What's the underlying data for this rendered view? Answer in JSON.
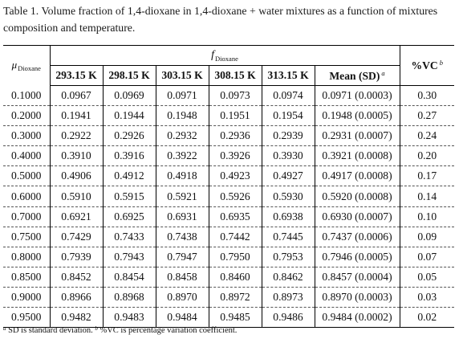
{
  "caption": "Table 1. Volume fraction of 1,4-dioxane in 1,4-dioxane + water mixtures as a function of mixtures composition and temperature.",
  "table": {
    "mu_symbol": "μ",
    "mu_subscript": "Dioxane",
    "f_symbol": "f",
    "f_subscript": "Dioxane",
    "temperatures": [
      "293.15 K",
      "298.15 K",
      "303.15 K",
      "308.15 K",
      "313.15 K"
    ],
    "mean_label": "Mean (SD)",
    "mean_footnote_mark": "a",
    "vc_label": "%VC",
    "vc_footnote_mark": "b",
    "rows": [
      {
        "mu": "0.1000",
        "t1": "0.0967",
        "t2": "0.0969",
        "t3": "0.0971",
        "t4": "0.0973",
        "t5": "0.0974",
        "mean": "0.0971 (0.0003)",
        "vc": "0.30"
      },
      {
        "mu": "0.2000",
        "t1": "0.1941",
        "t2": "0.1944",
        "t3": "0.1948",
        "t4": "0.1951",
        "t5": "0.1954",
        "mean": "0.1948 (0.0005)",
        "vc": "0.27"
      },
      {
        "mu": "0.3000",
        "t1": "0.2922",
        "t2": "0.2926",
        "t3": "0.2932",
        "t4": "0.2936",
        "t5": "0.2939",
        "mean": "0.2931 (0.0007)",
        "vc": "0.24"
      },
      {
        "mu": "0.4000",
        "t1": "0.3910",
        "t2": "0.3916",
        "t3": "0.3922",
        "t4": "0.3926",
        "t5": "0.3930",
        "mean": "0.3921 (0.0008)",
        "vc": "0.20"
      },
      {
        "mu": "0.5000",
        "t1": "0.4906",
        "t2": "0.4912",
        "t3": "0.4918",
        "t4": "0.4923",
        "t5": "0.4927",
        "mean": "0.4917 (0.0008)",
        "vc": "0.17"
      },
      {
        "mu": "0.6000",
        "t1": "0.5910",
        "t2": "0.5915",
        "t3": "0.5921",
        "t4": "0.5926",
        "t5": "0.5930",
        "mean": "0.5920 (0.0008)",
        "vc": "0.14"
      },
      {
        "mu": "0.7000",
        "t1": "0.6921",
        "t2": "0.6925",
        "t3": "0.6931",
        "t4": "0.6935",
        "t5": "0.6938",
        "mean": "0.6930 (0.0007)",
        "vc": "0.10"
      },
      {
        "mu": "0.7500",
        "t1": "0.7429",
        "t2": "0.7433",
        "t3": "0.7438",
        "t4": "0.7442",
        "t5": "0.7445",
        "mean": "0.7437 (0.0006)",
        "vc": "0.09"
      },
      {
        "mu": "0.8000",
        "t1": "0.7939",
        "t2": "0.7943",
        "t3": "0.7947",
        "t4": "0.7950",
        "t5": "0.7953",
        "mean": "0.7946 (0.0005)",
        "vc": "0.07"
      },
      {
        "mu": "0.8500",
        "t1": "0.8452",
        "t2": "0.8454",
        "t3": "0.8458",
        "t4": "0.8460",
        "t5": "0.8462",
        "mean": "0.8457 (0.0004)",
        "vc": "0.05"
      },
      {
        "mu": "0.9000",
        "t1": "0.8966",
        "t2": "0.8968",
        "t3": "0.8970",
        "t4": "0.8972",
        "t5": "0.8973",
        "mean": "0.8970 (0.0003)",
        "vc": "0.03"
      },
      {
        "mu": "0.9500",
        "t1": "0.9482",
        "t2": "0.9483",
        "t3": "0.9484",
        "t4": "0.9485",
        "t5": "0.9486",
        "mean": "0.9484 (0.0002)",
        "vc": "0.02"
      }
    ]
  },
  "footnote": {
    "mark_a": "a",
    "text_a": "SD is standard deviation.",
    "mark_b": "b",
    "text_b": "%VC is percentage variation coefficient."
  }
}
